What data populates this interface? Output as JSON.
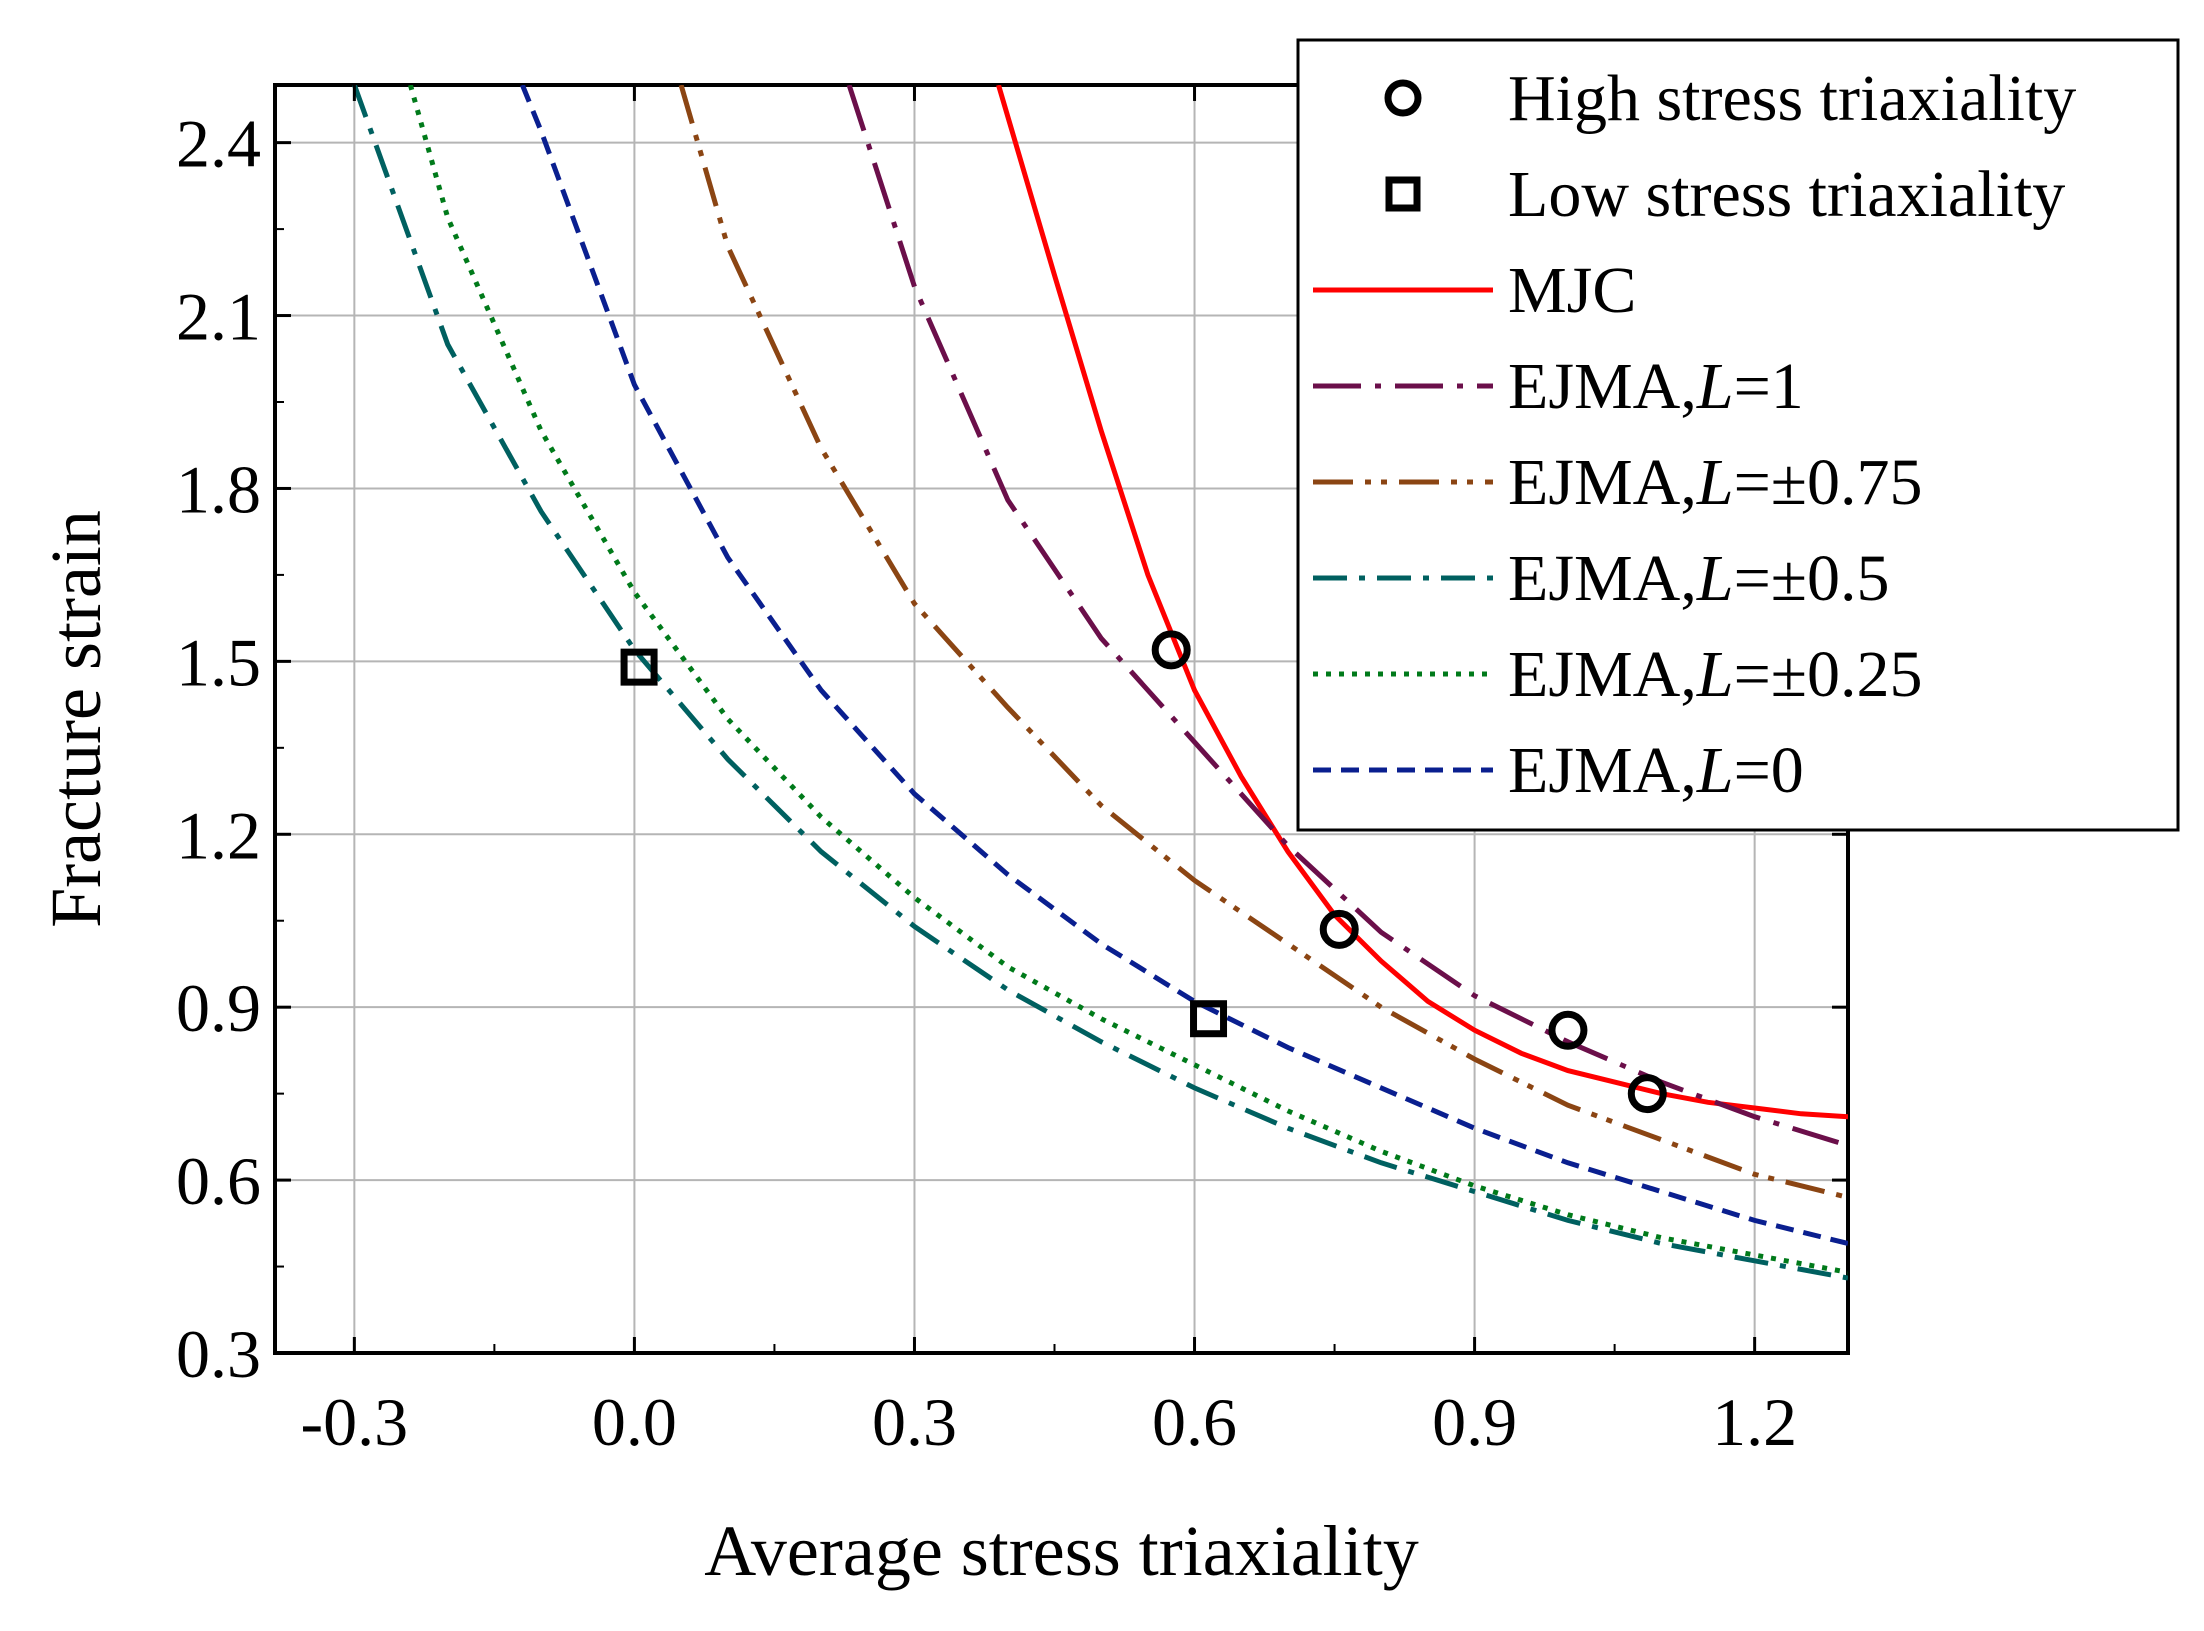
{
  "chart_data": {
    "type": "line",
    "xlabel": "Average stress triaxiality",
    "ylabel": "Fracture strain",
    "xlim": [
      -0.385,
      1.3
    ],
    "ylim": [
      0.3,
      2.5
    ],
    "xticks": [
      -0.3,
      0.0,
      0.3,
      0.6,
      0.9,
      1.2
    ],
    "xtick_labels": [
      "-0.3",
      "0.0",
      "0.3",
      "0.6",
      "0.9",
      "1.2"
    ],
    "yticks": [
      0.3,
      0.6,
      0.9,
      1.2,
      1.5,
      1.8,
      2.1,
      2.4
    ],
    "ytick_labels": [
      "0.3",
      "0.6",
      "0.9",
      "1.2",
      "1.5",
      "1.8",
      "2.1",
      "2.4"
    ],
    "grid": true,
    "legend_position": "top-right",
    "series": [
      {
        "name": "High stress triaxiality",
        "label_plain": "High stress triaxiality",
        "kind": "scatter",
        "marker": "circle",
        "color": "#000000",
        "points": [
          [
            0.575,
            1.52
          ],
          [
            0.755,
            1.035
          ],
          [
            1.0,
            0.86
          ],
          [
            1.085,
            0.75
          ]
        ]
      },
      {
        "name": "Low stress triaxiality",
        "label_plain": "Low stress triaxiality",
        "kind": "scatter",
        "marker": "square",
        "color": "#000000",
        "points": [
          [
            0.005,
            1.49
          ],
          [
            0.615,
            0.88
          ]
        ]
      },
      {
        "name": "MJC",
        "label_plain": "MJC",
        "kind": "line",
        "color": "#ff0000",
        "dash": "",
        "x": [
          0.39,
          0.45,
          0.5,
          0.55,
          0.6,
          0.65,
          0.7,
          0.75,
          0.8,
          0.85,
          0.9,
          0.95,
          1.0,
          1.05,
          1.1,
          1.15,
          1.2,
          1.25,
          1.3
        ],
        "y": [
          2.5,
          2.17,
          1.9,
          1.65,
          1.45,
          1.3,
          1.17,
          1.06,
          0.98,
          0.91,
          0.86,
          0.82,
          0.79,
          0.77,
          0.75,
          0.735,
          0.725,
          0.715,
          0.71
        ]
      },
      {
        "name": "EJMA,L=1",
        "label_plain": "EJMA,",
        "label_italic": "L",
        "label_suffix": "=1",
        "kind": "line",
        "color": "#6b0f4a",
        "dash": "48,14,6,14",
        "x": [
          0.23,
          0.3,
          0.4,
          0.5,
          0.6,
          0.7,
          0.8,
          0.9,
          1.0,
          1.1,
          1.2,
          1.3
        ],
        "y": [
          2.5,
          2.15,
          1.78,
          1.54,
          1.36,
          1.18,
          1.03,
          0.92,
          0.84,
          0.77,
          0.71,
          0.66
        ]
      },
      {
        "name": "EJMA,L=±0.75",
        "label_plain": "EJMA,",
        "label_italic": "L",
        "label_suffix": "=±0.75",
        "kind": "line",
        "color": "#8b4513",
        "dash": "40,12,6,10,6,12",
        "x": [
          0.05,
          0.1,
          0.2,
          0.3,
          0.4,
          0.5,
          0.6,
          0.7,
          0.8,
          0.9,
          1.0,
          1.1,
          1.2,
          1.3
        ],
        "y": [
          2.5,
          2.22,
          1.87,
          1.6,
          1.42,
          1.25,
          1.12,
          1.01,
          0.9,
          0.81,
          0.73,
          0.67,
          0.61,
          0.57
        ]
      },
      {
        "name": "EJMA,L=±0.5",
        "label_plain": "EJMA,",
        "label_italic": "L",
        "label_suffix": "=±0.5",
        "kind": "line",
        "color": "#006060",
        "dash": "34,12,6,12",
        "x": [
          -0.3,
          -0.2,
          -0.1,
          0.0,
          0.1,
          0.2,
          0.3,
          0.4,
          0.5,
          0.6,
          0.7,
          0.8,
          0.9,
          1.0,
          1.1,
          1.2,
          1.3
        ],
        "y": [
          2.5,
          2.05,
          1.76,
          1.52,
          1.33,
          1.17,
          1.04,
          0.93,
          0.84,
          0.76,
          0.69,
          0.63,
          0.58,
          0.53,
          0.49,
          0.46,
          0.43
        ]
      },
      {
        "name": "EJMA,L=±0.25",
        "label_plain": "EJMA,",
        "label_italic": "L",
        "label_suffix": "=±0.25",
        "kind": "line",
        "color": "#007a1a",
        "dash": "5,8",
        "x": [
          -0.24,
          -0.2,
          -0.1,
          0.0,
          0.1,
          0.2,
          0.3,
          0.4,
          0.5,
          0.6,
          0.7,
          0.8,
          0.9,
          1.0,
          1.1,
          1.2,
          1.3
        ],
        "y": [
          2.5,
          2.27,
          1.9,
          1.62,
          1.4,
          1.23,
          1.09,
          0.97,
          0.88,
          0.8,
          0.72,
          0.65,
          0.59,
          0.54,
          0.5,
          0.47,
          0.44
        ]
      },
      {
        "name": "EJMA,L=0",
        "label_plain": "EJMA,",
        "label_italic": "L",
        "label_suffix": "=0",
        "kind": "line",
        "color": "#0a1f8f",
        "dash": "18,10",
        "x": [
          -0.12,
          -0.1,
          0.0,
          0.1,
          0.2,
          0.3,
          0.4,
          0.5,
          0.6,
          0.7,
          0.8,
          0.9,
          1.0,
          1.1,
          1.2,
          1.3
        ],
        "y": [
          2.5,
          2.42,
          1.98,
          1.68,
          1.45,
          1.27,
          1.13,
          1.01,
          0.91,
          0.83,
          0.76,
          0.69,
          0.63,
          0.58,
          0.53,
          0.49
        ]
      }
    ]
  }
}
